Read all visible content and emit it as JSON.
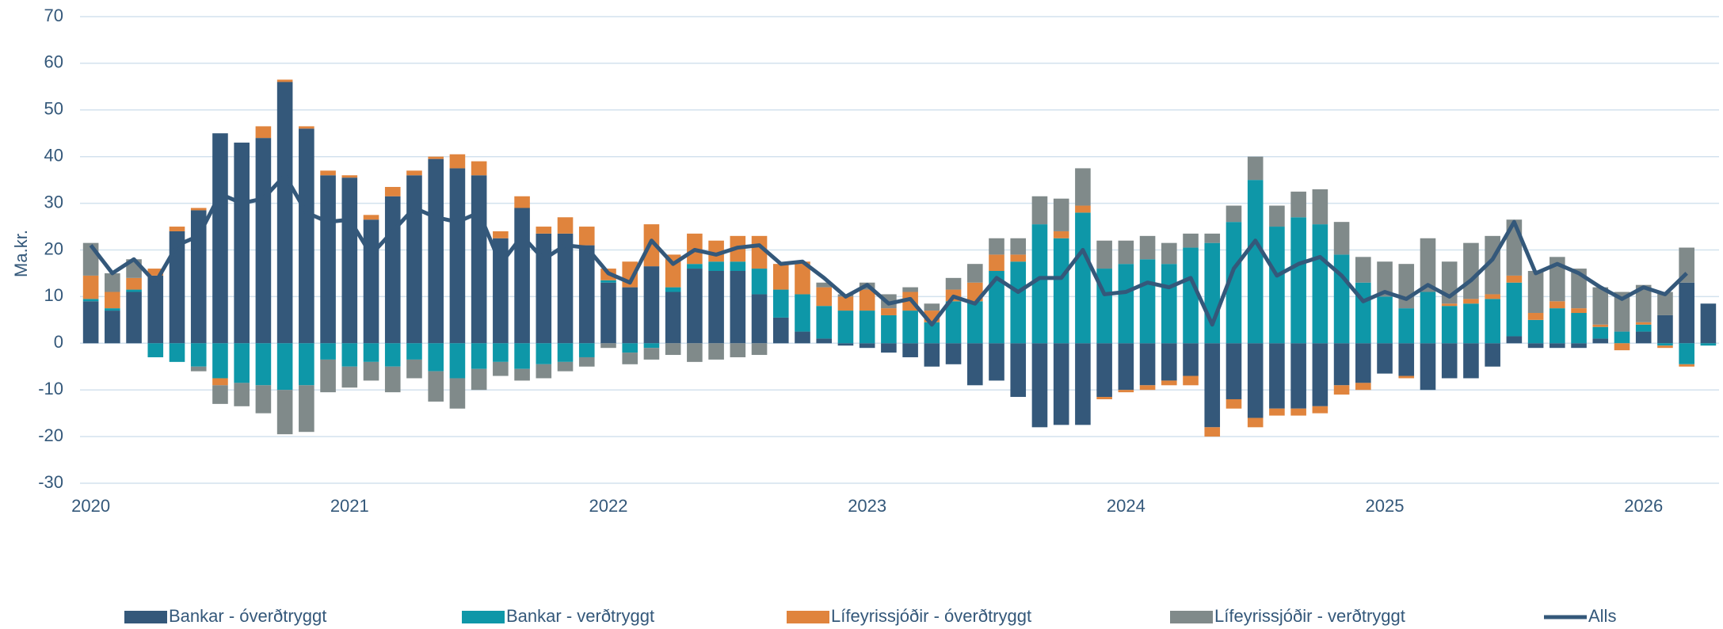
{
  "chart_data": {
    "type": "bar",
    "stacked": true,
    "y_label": "Ma.kr.",
    "categories": [
      "2020",
      null,
      null,
      null,
      null,
      null,
      null,
      null,
      null,
      null,
      null,
      null,
      "2021",
      null,
      null,
      null,
      null,
      null,
      null,
      null,
      null,
      null,
      null,
      null,
      "2022",
      null,
      null,
      null,
      null,
      null,
      null,
      null,
      null,
      null,
      null,
      null,
      "2023",
      null,
      null,
      null,
      null,
      null,
      null,
      null,
      null,
      null,
      null,
      null,
      "2024",
      null,
      null,
      null,
      null,
      null,
      null,
      null,
      null,
      null,
      null,
      null,
      "2025",
      null,
      null,
      null,
      null,
      null,
      null,
      null,
      null,
      null,
      null,
      null,
      "2026",
      null,
      null,
      null
    ],
    "ylim": [
      -30,
      70
    ],
    "yticks": [
      -30,
      -20,
      -10,
      0,
      10,
      20,
      30,
      40,
      50,
      60,
      70
    ],
    "grid": true,
    "legend": "bottom",
    "series": [
      {
        "name": "Bankar - óverðtryggt",
        "color": "#34587a",
        "type": "bar",
        "values": [
          9,
          7,
          11,
          14.5,
          24,
          28.5,
          45,
          43,
          44,
          56,
          46,
          36,
          35.5,
          26.5,
          31.5,
          36,
          39.5,
          37.5,
          36,
          22.5,
          29,
          23.5,
          23.5,
          21,
          13,
          12,
          16.5,
          11,
          16,
          15.5,
          15.5,
          10.5,
          5.5,
          2.5,
          1,
          -0.5,
          -1,
          -2,
          -3,
          -5,
          -4.5,
          -9,
          -8,
          -11.5,
          -18,
          -17.5,
          -17.5,
          -11.5,
          -10,
          -9,
          -8,
          -7,
          -18,
          -12,
          -16,
          -14,
          -14,
          -13.5,
          -9,
          -8.5,
          -6.5,
          -7,
          -10,
          -7.5,
          -7.5,
          -5,
          1.5,
          -1,
          -1,
          -1,
          1,
          0,
          2.5,
          6,
          13,
          8.5
        ]
      },
      {
        "name": "Bankar - verðtryggt",
        "color": "#0e97a8",
        "type": "bar",
        "values": [
          0.5,
          0.5,
          0.5,
          -3,
          -4,
          -5,
          -7.5,
          -8.5,
          -9,
          -10,
          -9,
          -3.5,
          -5,
          -4,
          -5,
          -3.5,
          -6,
          -7.5,
          -5.5,
          -4,
          -5.5,
          -4.5,
          -4,
          -3,
          0.5,
          -2,
          -1,
          1,
          1,
          2,
          2,
          5.5,
          6,
          8,
          7,
          7,
          7,
          6,
          7,
          4.5,
          9,
          9,
          15.5,
          17.5,
          25.5,
          22.5,
          28,
          16,
          17,
          18,
          17,
          20.5,
          21.5,
          26,
          35,
          25,
          27,
          25.5,
          19,
          13,
          10,
          7.5,
          11,
          8,
          8.5,
          9.5,
          11.5,
          5,
          7.5,
          6.5,
          2.5,
          2.5,
          1.5,
          -0.5,
          -4.5,
          -0.5
        ]
      },
      {
        "name": "Lífeyrissjóðir - óverðtryggt",
        "color": "#e0843d",
        "type": "bar",
        "values": [
          5,
          3.5,
          2.5,
          1.5,
          1,
          0.5,
          -1.5,
          0,
          2.5,
          0.5,
          0.5,
          1,
          0.5,
          1,
          2,
          1,
          0.5,
          3,
          3,
          1.5,
          2.5,
          1.5,
          3.5,
          4,
          2.5,
          5.5,
          9,
          7,
          6.5,
          4.5,
          5.5,
          7,
          5.5,
          7,
          4,
          3,
          4.5,
          1.5,
          4,
          2.5,
          2.5,
          4,
          3.5,
          1.5,
          0,
          1.5,
          1.5,
          -0.5,
          -0.5,
          -1,
          -1,
          -2,
          -2,
          -2,
          -2,
          -1.5,
          -1.5,
          -1.5,
          -2,
          -1.5,
          0,
          -0.5,
          0,
          0.5,
          1,
          1,
          1.5,
          1.5,
          1.5,
          1,
          0.5,
          -1.5,
          0.5,
          -0.5,
          -0.5,
          0
        ]
      },
      {
        "name": "Lífeyrissjóðir - verðtryggt",
        "color": "#808a8a",
        "type": "bar",
        "values": [
          7,
          4,
          4,
          0,
          0,
          -1,
          -4,
          -5,
          -6,
          -9.5,
          -10,
          -7,
          -4.5,
          -4,
          -5.5,
          -4,
          -6.5,
          -6.5,
          -4.5,
          -3,
          -2.5,
          -3,
          -2,
          -2,
          -1,
          -2.5,
          -2.5,
          -2.5,
          -4,
          -3.5,
          -3,
          -2.5,
          0,
          0,
          1,
          0.5,
          1.5,
          3,
          1,
          1.5,
          2.5,
          4,
          3.5,
          3.5,
          6,
          7,
          8,
          6,
          5,
          5,
          4.5,
          3,
          2,
          3.5,
          5,
          4.5,
          5.5,
          7.5,
          7,
          5.5,
          7.5,
          9.5,
          11.5,
          9,
          12,
          12.5,
          12,
          9,
          9.5,
          8.5,
          8,
          8.5,
          8,
          5,
          7.5,
          0
        ]
      },
      {
        "name": "Alls",
        "color": "#34587a",
        "type": "line",
        "values": [
          21,
          15,
          18,
          13,
          21,
          23,
          32,
          30,
          31,
          36,
          28,
          26,
          26.5,
          19,
          24,
          29,
          27,
          26,
          28,
          17,
          23,
          18,
          21,
          20.5,
          15,
          13,
          22,
          17,
          20,
          19,
          20.5,
          21,
          17,
          17.5,
          14,
          10,
          12.5,
          8.5,
          9.5,
          4,
          10,
          8.5,
          14,
          11,
          14,
          14,
          20,
          10.5,
          11,
          13,
          12,
          14,
          4,
          16,
          22,
          14.5,
          17,
          18.5,
          14.5,
          9,
          11,
          9.5,
          12.5,
          10,
          13.5,
          18,
          26,
          15,
          17,
          15,
          12,
          9.5,
          12,
          10.5,
          15,
          null
        ]
      }
    ]
  }
}
